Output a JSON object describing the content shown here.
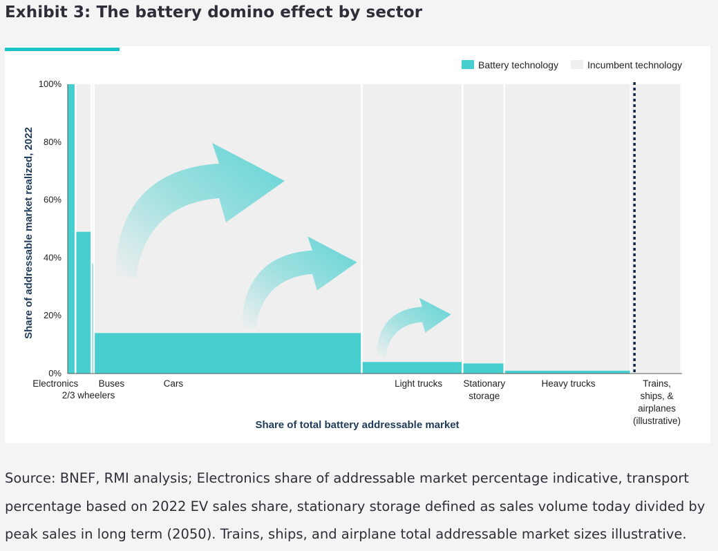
{
  "header": {
    "title": "Exhibit 3: The battery domino effect by sector"
  },
  "colors": {
    "accent": "#1ac3c8",
    "battery": "#47cfcf",
    "incumbent": "#efefef",
    "axis_label": "#1f3b5a",
    "text": "#2e2e38"
  },
  "chart_data": {
    "type": "bar",
    "subtype": "variable-width stacked bar (marimekko)",
    "title": "",
    "xlabel": "Share of total battery addressable market",
    "ylabel": "Share of addressable market realized, 2022",
    "ylim": [
      0,
      100
    ],
    "yticks": [
      "0%",
      "20%",
      "40%",
      "60%",
      "80%",
      "100%"
    ],
    "legend": {
      "placement": "top-right",
      "entries": [
        "Battery technology",
        "Incumbent technology"
      ]
    },
    "series": [
      {
        "name": "Battery technology",
        "values": [
          100,
          49,
          38,
          14,
          4,
          3.5,
          1,
          0
        ]
      },
      {
        "name": "Incumbent technology",
        "values": [
          0,
          51,
          62,
          86,
          96,
          96.5,
          99,
          100
        ]
      }
    ],
    "categories": [
      "Electronics",
      "2/3 wheelers",
      "Buses",
      "Cars",
      "Light trucks",
      "Stationary storage",
      "Heavy trucks",
      "Trains, ships, & airplanes (illustrative)"
    ],
    "category_labels": [
      {
        "lines": [
          "Electronics"
        ]
      },
      {
        "lines": [
          "2/3 wheelers"
        ]
      },
      {
        "lines": [
          "Buses"
        ]
      },
      {
        "lines": [
          "Cars"
        ]
      },
      {
        "lines": [
          "Light trucks"
        ]
      },
      {
        "lines": [
          "Stationary",
          "storage"
        ]
      },
      {
        "lines": [
          "Heavy trucks"
        ]
      },
      {
        "lines": [
          "Trains,",
          "ships, &",
          "airplanes",
          "(illustrative)"
        ]
      }
    ],
    "market_share_pct": [
      1.4,
      2.6,
      0.4,
      43.6,
      16.4,
      6.8,
      20.6,
      8.2
    ],
    "annotations": [
      "illustrative divider (dotted) before trains, ships, & airplanes",
      "three curved arrows indicating domino effect"
    ]
  },
  "source_note": "Source: BNEF, RMI analysis; Electronics share of addressable market percentage indicative, transport percentage based on 2022 EV sales share, stationary storage defined as sales volume today divided by peak sales in long term (2050). Trains, ships, and airplane total addressable market sizes illustrative."
}
